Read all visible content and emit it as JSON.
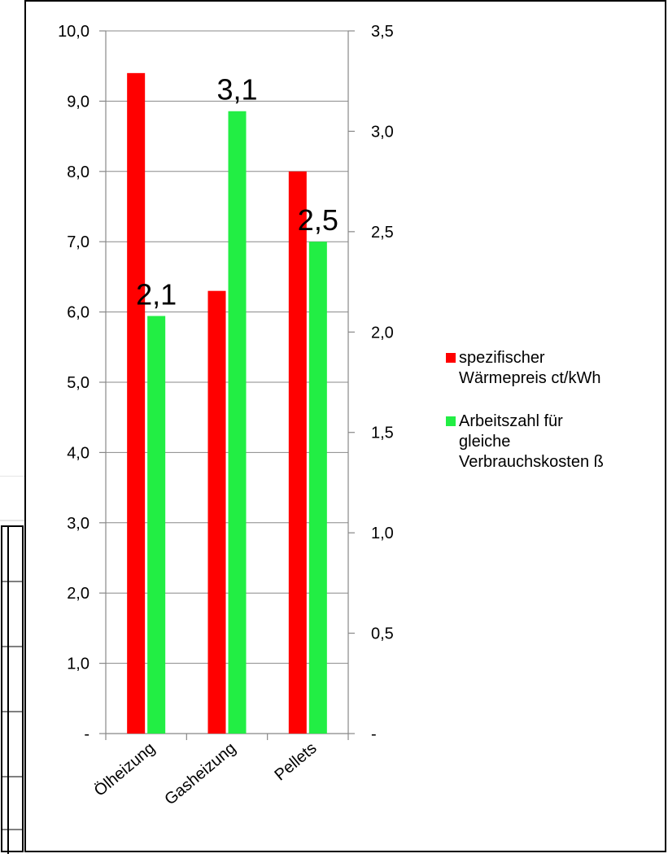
{
  "chart_data": {
    "type": "bar",
    "categories": [
      "Ölheizung",
      "Gasheizung",
      "Pellets"
    ],
    "series": [
      {
        "name": "spezifischer Wärmepreis ct/kWh",
        "axis": "left",
        "color": "#ff0000",
        "values": [
          9.4,
          6.3,
          8.0
        ]
      },
      {
        "name": "Arbeitszahl für gleiche Verbrauchskosten ß",
        "axis": "right",
        "color": "#22ee44",
        "values": [
          2.08,
          3.1,
          2.45
        ],
        "data_labels": [
          "2,1",
          "3,1",
          "2,5"
        ]
      }
    ],
    "y_left": {
      "ylim": [
        0,
        10
      ],
      "ticks": [
        0,
        1,
        2,
        3,
        4,
        5,
        6,
        7,
        8,
        9,
        10
      ],
      "tick_labels": [
        "-",
        "1,0",
        "2,0",
        "3,0",
        "4,0",
        "5,0",
        "6,0",
        "7,0",
        "8,0",
        "9,0",
        "10,0"
      ]
    },
    "y_right": {
      "ylim": [
        0,
        3.5
      ],
      "ticks": [
        0,
        0.5,
        1,
        1.5,
        2,
        2.5,
        3,
        3.5
      ],
      "tick_labels": [
        "-",
        "0,5",
        "1,0",
        "1,5",
        "2,0",
        "2,5",
        "3,0",
        "3,5"
      ]
    },
    "grid": true,
    "legend_position": "right",
    "legend_labels": [
      [
        "spezifischer",
        "Wärmepreis ct/kWh"
      ],
      [
        "Arbeitszahl für",
        "gleiche",
        "Verbrauchskosten ß"
      ]
    ]
  }
}
